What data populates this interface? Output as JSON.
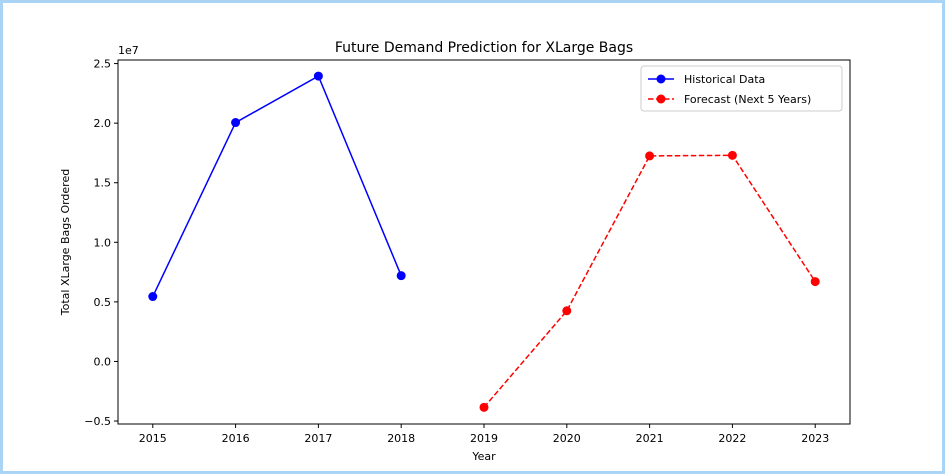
{
  "chart_data": {
    "type": "line",
    "title": "Future Demand Prediction for XLarge Bags",
    "xlabel": "Year",
    "ylabel": "Total XLarge Bags Ordered",
    "y_offset_label": "1e7",
    "xlim": [
      2014.58,
      2023.42
    ],
    "ylim": [
      -5250000,
      25300000
    ],
    "x_ticks": [
      2015,
      2016,
      2017,
      2018,
      2019,
      2020,
      2021,
      2022,
      2023
    ],
    "y_ticks": [
      -5000000,
      0,
      5000000,
      10000000,
      15000000,
      20000000,
      25000000
    ],
    "y_tick_labels": [
      "−0.5",
      "0.0",
      "0.5",
      "1.0",
      "1.5",
      "2.0",
      "2.5"
    ],
    "grid": false,
    "legend_position": "upper right",
    "series": [
      {
        "name": "Historical Data",
        "color": "#0000ff",
        "linestyle": "solid",
        "marker": "circle",
        "x": [
          2015,
          2016,
          2017,
          2018
        ],
        "y": [
          5450000,
          20050000,
          23950000,
          7200000
        ]
      },
      {
        "name": "Forecast (Next 5 Years)",
        "color": "#ff0000",
        "linestyle": "dashed",
        "marker": "circle",
        "x": [
          2019,
          2020,
          2021,
          2022,
          2023
        ],
        "y": [
          -3850000,
          4250000,
          17250000,
          17300000,
          6700000
        ]
      }
    ]
  }
}
